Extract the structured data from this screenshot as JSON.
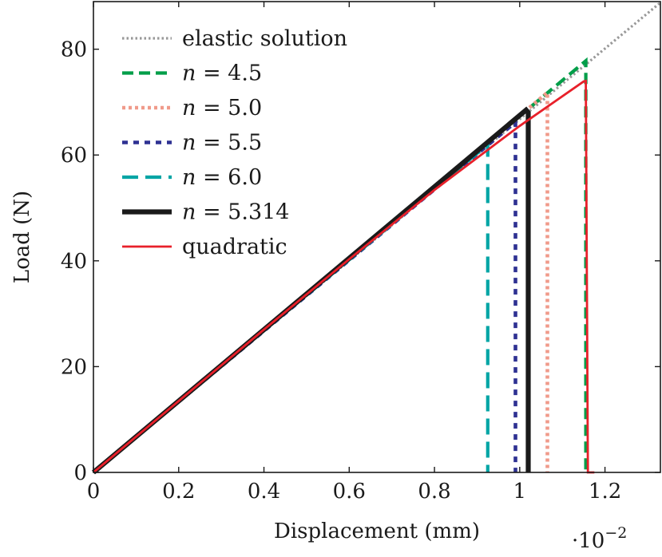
{
  "chart_data": {
    "type": "line",
    "xlabel": "Displacement (mm)",
    "ylabel": "Load (N)",
    "x_multiplier": "·10",
    "x_multiplier_exp": "−2",
    "xlim": [
      0,
      1.33
    ],
    "ylim": [
      0,
      89
    ],
    "xticks": [
      0,
      0.2,
      0.4,
      0.6,
      0.8,
      1,
      1.2
    ],
    "xtick_labels": [
      "0",
      "0.2",
      "0.4",
      "0.6",
      "0.8",
      "1",
      "1.2"
    ],
    "yticks": [
      0,
      20,
      40,
      60,
      80
    ],
    "ytick_labels": [
      "0",
      "20",
      "40",
      "60",
      "80"
    ],
    "grid": false,
    "legend_position": "top-left",
    "series": [
      {
        "name": "elastic solution",
        "color": "#999999",
        "style": "dotted",
        "x": [
          0,
          1.33
        ],
        "y": [
          0,
          88.8
        ]
      },
      {
        "name": "n = 4.5",
        "label_var": "n",
        "label_rest": " = 4.5",
        "color": "#009e49",
        "style": "dashed",
        "x": [
          0,
          1.155,
          1.155
        ],
        "y": [
          0,
          77.8,
          0
        ]
      },
      {
        "name": "n = 5.0",
        "label_var": "n",
        "label_rest": " = 5.0",
        "color": "#f09a8a",
        "style": "dotted-thick",
        "x": [
          0,
          1.065,
          1.065
        ],
        "y": [
          0,
          71.8,
          0
        ]
      },
      {
        "name": "n = 5.5",
        "label_var": "n",
        "label_rest": " = 5.5",
        "color": "#2e3192",
        "style": "dashed-short",
        "x": [
          0,
          0.99,
          0.99
        ],
        "y": [
          0,
          66.2,
          0
        ]
      },
      {
        "name": "n = 6.0",
        "label_var": "n",
        "label_rest": " = 6.0",
        "color": "#00a5a5",
        "style": "dashed-long",
        "x": [
          0,
          0.925,
          0.925
        ],
        "y": [
          0,
          62.0,
          0
        ]
      },
      {
        "name": "n = 5.314",
        "label_var": "n",
        "label_rest": " = 5.314",
        "color": "#1a1a1a",
        "style": "solid-thick",
        "x": [
          0,
          1.015,
          1.02,
          1.02
        ],
        "y": [
          0,
          68.5,
          68.0,
          0
        ]
      },
      {
        "name": "quadratic",
        "color": "#e8202a",
        "style": "solid",
        "x": [
          0,
          0.2,
          0.4,
          0.6,
          0.8,
          1.0,
          1.15,
          1.155,
          1.16,
          1.175
        ],
        "y": [
          0,
          13.5,
          27.0,
          40.3,
          53.4,
          65.5,
          73.9,
          74.0,
          0,
          0
        ]
      }
    ]
  }
}
